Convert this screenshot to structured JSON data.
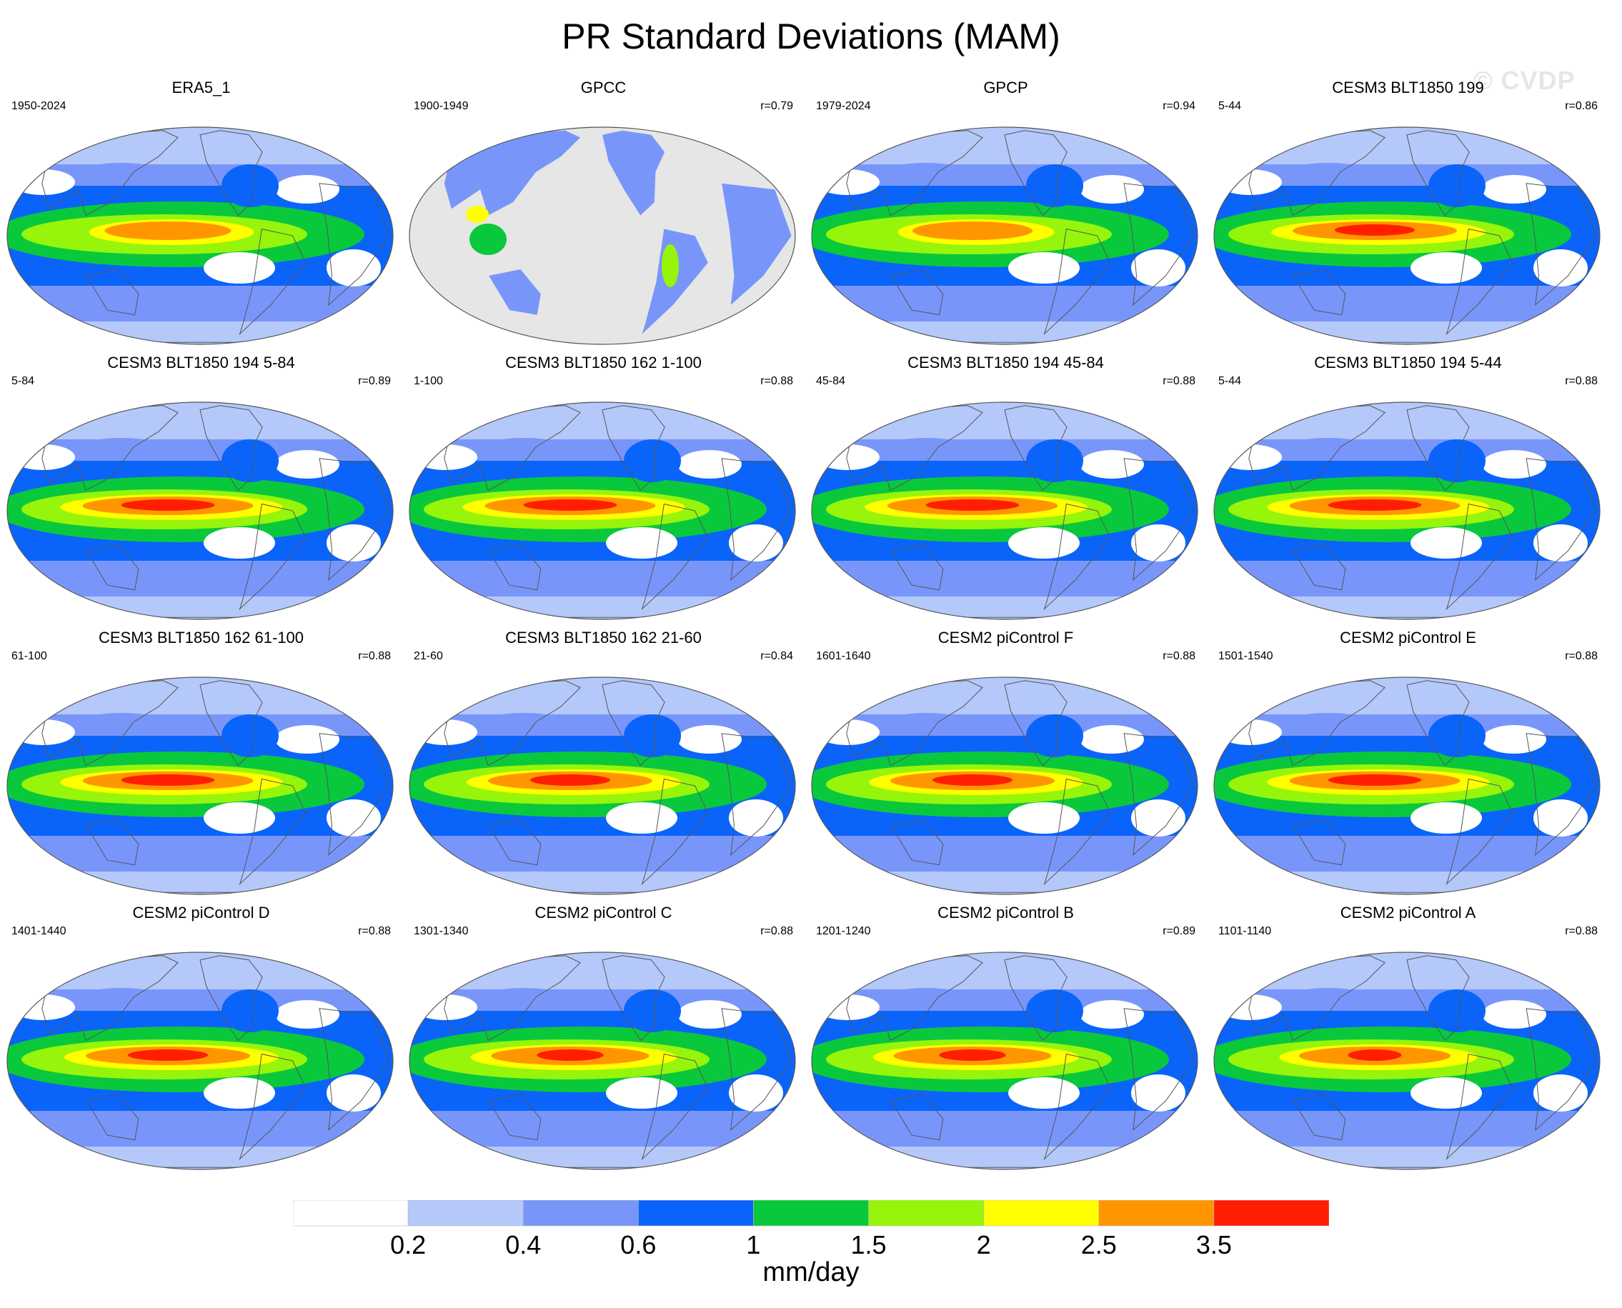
{
  "title": "PR Standard Deviations (MAM)",
  "watermark": "© CVDP",
  "panels": [
    {
      "name": "ERA5_1",
      "period": "1950-2024",
      "r": "",
      "intensity": 1.0
    },
    {
      "name": "GPCC",
      "period": "1900-1949",
      "r": "r=0.79",
      "intensity": 0.6,
      "land_only": true
    },
    {
      "name": "GPCP",
      "period": "1979-2024",
      "r": "r=0.94",
      "intensity": 0.95
    },
    {
      "name": "CESM3 BLT1850 199",
      "period": "5-44",
      "r": "r=0.86",
      "intensity": 1.3
    },
    {
      "name": "CESM3 BLT1850 194 5-84",
      "period": "5-84",
      "r": "r=0.89",
      "intensity": 1.35
    },
    {
      "name": "CESM3 BLT1850 162 1-100",
      "period": "1-100",
      "r": "r=0.88",
      "intensity": 1.35
    },
    {
      "name": "CESM3 BLT1850 194 45-84",
      "period": "45-84",
      "r": "r=0.88",
      "intensity": 1.35
    },
    {
      "name": "CESM3 BLT1850 194 5-44",
      "period": "5-44",
      "r": "r=0.88",
      "intensity": 1.35
    },
    {
      "name": "CESM3 BLT1850 162 61-100",
      "period": "61-100",
      "r": "r=0.88",
      "intensity": 1.35
    },
    {
      "name": "CESM3 BLT1850 162 21-60",
      "period": "21-60",
      "r": "r=0.84",
      "intensity": 1.3
    },
    {
      "name": "CESM2 piControl F",
      "period": "1601-1640",
      "r": "r=0.88",
      "intensity": 1.3
    },
    {
      "name": "CESM2 piControl E",
      "period": "1501-1540",
      "r": "r=0.88",
      "intensity": 1.35
    },
    {
      "name": "CESM2 piControl D",
      "period": "1401-1440",
      "r": "r=0.88",
      "intensity": 1.3
    },
    {
      "name": "CESM2 piControl C",
      "period": "1301-1340",
      "r": "r=0.88",
      "intensity": 1.25
    },
    {
      "name": "CESM2 piControl B",
      "period": "1201-1240",
      "r": "r=0.89",
      "intensity": 1.25
    },
    {
      "name": "CESM2 piControl A",
      "period": "1101-1140",
      "r": "r=0.88",
      "intensity": 1.2
    }
  ],
  "colorbar": {
    "units": "mm/day",
    "labels": [
      "0.2",
      "0.4",
      "0.6",
      "1",
      "1.5",
      "2",
      "2.5",
      "3.5"
    ],
    "colors": [
      "#ffffff",
      "#b4c8fa",
      "#7896fa",
      "#0a64fa",
      "#0ac83c",
      "#96f50a",
      "#ffff00",
      "#ff9600",
      "#ff1e00"
    ]
  },
  "land_color": "#e6e6e6"
}
